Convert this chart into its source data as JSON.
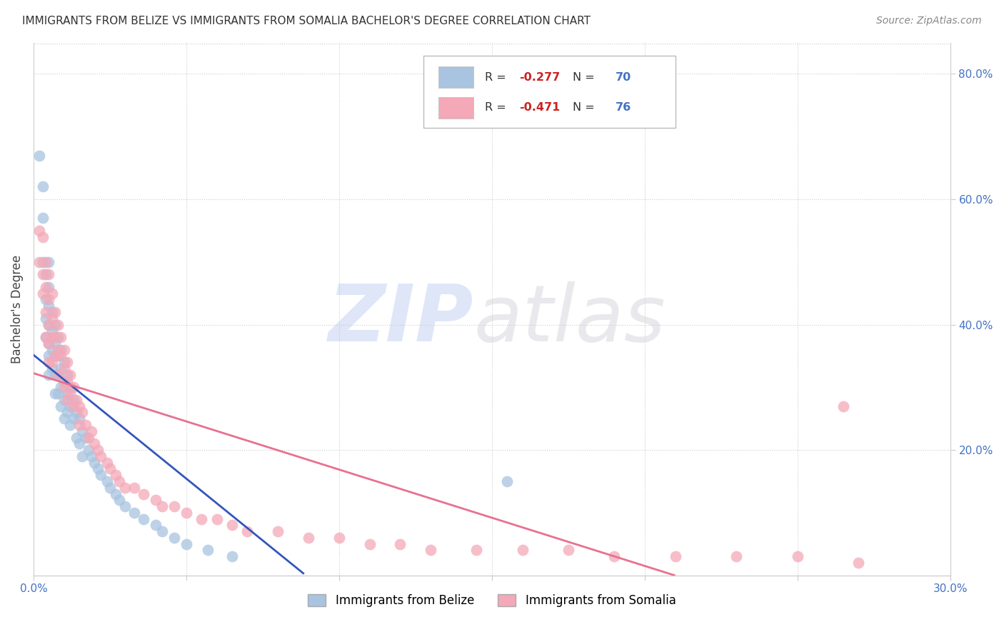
{
  "title": "IMMIGRANTS FROM BELIZE VS IMMIGRANTS FROM SOMALIA BACHELOR'S DEGREE CORRELATION CHART",
  "source": "Source: ZipAtlas.com",
  "ylabel": "Bachelor's Degree",
  "xlim": [
    0.0,
    0.3
  ],
  "ylim": [
    0.0,
    0.85
  ],
  "belize_R": -0.277,
  "belize_N": 70,
  "somalia_R": -0.471,
  "somalia_N": 76,
  "belize_color": "#a8c4e0",
  "somalia_color": "#f4a8b8",
  "belize_line_color": "#3355bb",
  "somalia_line_color": "#e87090",
  "background_color": "#ffffff",
  "grid_color": "#cccccc",
  "belize_x": [
    0.002,
    0.003,
    0.003,
    0.003,
    0.004,
    0.004,
    0.004,
    0.004,
    0.005,
    0.005,
    0.005,
    0.005,
    0.005,
    0.005,
    0.005,
    0.006,
    0.006,
    0.006,
    0.006,
    0.007,
    0.007,
    0.007,
    0.007,
    0.007,
    0.008,
    0.008,
    0.008,
    0.008,
    0.009,
    0.009,
    0.009,
    0.009,
    0.01,
    0.01,
    0.01,
    0.01,
    0.011,
    0.011,
    0.011,
    0.012,
    0.012,
    0.012,
    0.013,
    0.013,
    0.014,
    0.014,
    0.015,
    0.015,
    0.016,
    0.016,
    0.017,
    0.018,
    0.019,
    0.02,
    0.021,
    0.022,
    0.024,
    0.025,
    0.027,
    0.028,
    0.03,
    0.033,
    0.036,
    0.04,
    0.042,
    0.046,
    0.05,
    0.057,
    0.065,
    0.155
  ],
  "belize_y": [
    0.67,
    0.62,
    0.57,
    0.5,
    0.48,
    0.44,
    0.41,
    0.38,
    0.5,
    0.46,
    0.43,
    0.4,
    0.37,
    0.35,
    0.32,
    0.42,
    0.39,
    0.36,
    0.33,
    0.4,
    0.37,
    0.35,
    0.32,
    0.29,
    0.38,
    0.35,
    0.32,
    0.29,
    0.36,
    0.33,
    0.3,
    0.27,
    0.34,
    0.31,
    0.28,
    0.25,
    0.32,
    0.29,
    0.26,
    0.3,
    0.27,
    0.24,
    0.28,
    0.25,
    0.26,
    0.22,
    0.25,
    0.21,
    0.23,
    0.19,
    0.22,
    0.2,
    0.19,
    0.18,
    0.17,
    0.16,
    0.15,
    0.14,
    0.13,
    0.12,
    0.11,
    0.1,
    0.09,
    0.08,
    0.07,
    0.06,
    0.05,
    0.04,
    0.03,
    0.15
  ],
  "somalia_x": [
    0.002,
    0.002,
    0.003,
    0.003,
    0.003,
    0.004,
    0.004,
    0.004,
    0.004,
    0.005,
    0.005,
    0.005,
    0.005,
    0.005,
    0.006,
    0.006,
    0.006,
    0.006,
    0.007,
    0.007,
    0.007,
    0.008,
    0.008,
    0.008,
    0.009,
    0.009,
    0.01,
    0.01,
    0.01,
    0.011,
    0.011,
    0.011,
    0.012,
    0.012,
    0.013,
    0.013,
    0.014,
    0.015,
    0.015,
    0.016,
    0.017,
    0.018,
    0.019,
    0.02,
    0.021,
    0.022,
    0.024,
    0.025,
    0.027,
    0.028,
    0.03,
    0.033,
    0.036,
    0.04,
    0.042,
    0.046,
    0.05,
    0.055,
    0.06,
    0.065,
    0.07,
    0.08,
    0.09,
    0.1,
    0.11,
    0.12,
    0.13,
    0.145,
    0.16,
    0.175,
    0.19,
    0.21,
    0.23,
    0.25,
    0.265,
    0.27
  ],
  "somalia_y": [
    0.55,
    0.5,
    0.54,
    0.48,
    0.45,
    0.5,
    0.46,
    0.42,
    0.38,
    0.48,
    0.44,
    0.4,
    0.37,
    0.34,
    0.45,
    0.41,
    0.38,
    0.34,
    0.42,
    0.38,
    0.35,
    0.4,
    0.36,
    0.32,
    0.38,
    0.35,
    0.36,
    0.33,
    0.3,
    0.34,
    0.31,
    0.28,
    0.32,
    0.29,
    0.3,
    0.27,
    0.28,
    0.27,
    0.24,
    0.26,
    0.24,
    0.22,
    0.23,
    0.21,
    0.2,
    0.19,
    0.18,
    0.17,
    0.16,
    0.15,
    0.14,
    0.14,
    0.13,
    0.12,
    0.11,
    0.11,
    0.1,
    0.09,
    0.09,
    0.08,
    0.07,
    0.07,
    0.06,
    0.06,
    0.05,
    0.05,
    0.04,
    0.04,
    0.04,
    0.04,
    0.03,
    0.03,
    0.03,
    0.03,
    0.27,
    0.02
  ]
}
